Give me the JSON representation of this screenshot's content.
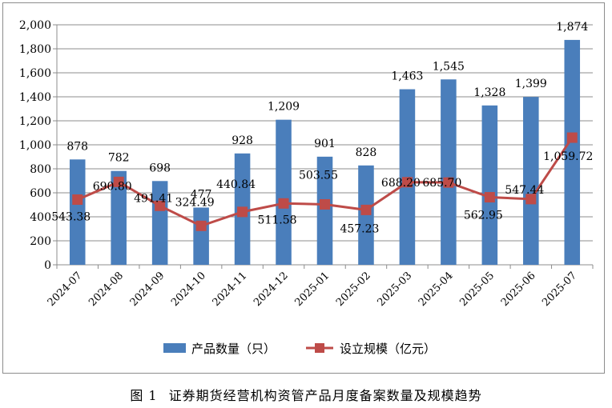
{
  "caption": {
    "figure_no": "图 1",
    "text": "证券期货经营机构资管产品月度备案数量及规模趋势"
  },
  "colors": {
    "bar": "#4a7ebb",
    "line": "#be4b48",
    "grid": "#8c8c8c"
  },
  "chart_data": {
    "type": "bar",
    "title": "",
    "xlabel": "",
    "ylabel": "",
    "ylim": [
      0,
      2000
    ],
    "yticks": [
      "0",
      "200",
      "400",
      "600",
      "800",
      "1,000",
      "1,200",
      "1,400",
      "1,600",
      "1,800",
      "2,000"
    ],
    "grid": true,
    "legend_position": "bottom",
    "categories": [
      "2024-07",
      "2024-08",
      "2024-09",
      "2024-10",
      "2024-11",
      "2024-12",
      "2025-01",
      "2025-02",
      "2025-03",
      "2025-04",
      "2025-05",
      "2025-06",
      "2025-07"
    ],
    "series": [
      {
        "name": "产品数量（只）",
        "type": "bar",
        "values": [
          878,
          782,
          698,
          477,
          928,
          1209,
          901,
          828,
          1463,
          1545,
          1328,
          1399,
          1874
        ],
        "labels": [
          "878",
          "782",
          "698",
          "477",
          "928",
          "1,209",
          "901",
          "828",
          "1,463",
          "1,545",
          "1,328",
          "1,399",
          "1,874"
        ]
      },
      {
        "name": "设立规模（亿元）",
        "type": "line",
        "values": [
          543.38,
          690.8,
          491.41,
          324.49,
          440.84,
          511.58,
          503.55,
          457.23,
          688.2,
          685.7,
          562.95,
          547.44,
          1059.72
        ],
        "labels": [
          "543.38",
          "690.80",
          "491.41",
          "324.49",
          "440.84",
          "511.58",
          "503.55",
          "457.23",
          "688.20",
          "685.70",
          "562.95",
          "547.44",
          "1,059.72"
        ]
      }
    ]
  }
}
